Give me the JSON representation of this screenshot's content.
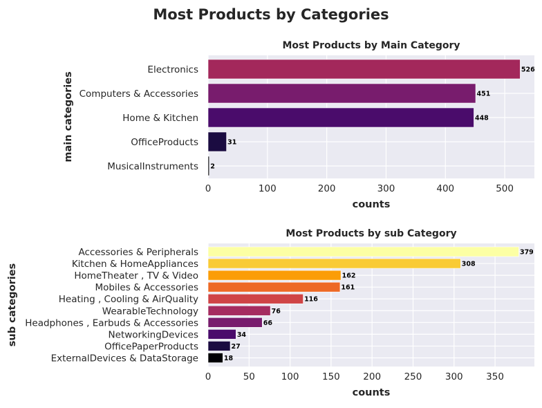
{
  "title": "Most Products by Categories",
  "chart_data": [
    {
      "type": "bar",
      "orientation": "horizontal",
      "title": "Most Products by Main Category",
      "xlabel": "counts",
      "ylabel": "main categories",
      "xlim": [
        0,
        550
      ],
      "xticks": [
        0,
        100,
        200,
        300,
        400,
        500
      ],
      "grid": true,
      "categories": [
        "Electronics",
        "Computers & Accessories",
        "Home & Kitchen",
        "OfficeProducts",
        "MusicalInstruments"
      ],
      "values": [
        526,
        451,
        448,
        31,
        2
      ],
      "colors": [
        "#a3285b",
        "#781c6d",
        "#4a0c6b",
        "#1b0c41",
        "#000004"
      ]
    },
    {
      "type": "bar",
      "orientation": "horizontal",
      "title": "Most Products by sub Category",
      "xlabel": "counts",
      "ylabel": "sub categories",
      "xlim": [
        0,
        398
      ],
      "xticks": [
        0,
        50,
        100,
        150,
        200,
        250,
        300,
        350
      ],
      "grid": true,
      "categories": [
        "Accessories & Peripherals",
        "Kitchen & HomeAppliances",
        "HomeTheater , TV & Video",
        "Mobiles & Accessories",
        "Heating , Cooling & AirQuality",
        "WearableTechnology",
        "Headphones , Earbuds & Accessories",
        "NetworkingDevices",
        "OfficePaperProducts",
        "ExternalDevices & DataStorage"
      ],
      "values": [
        379,
        308,
        162,
        161,
        116,
        76,
        66,
        34,
        27,
        18
      ],
      "colors": [
        "#fcffa4",
        "#f9cb35",
        "#fb9d07",
        "#ed6925",
        "#cf4446",
        "#a52c60",
        "#781c6d",
        "#4a0c6b",
        "#1b0c41",
        "#000004"
      ]
    }
  ]
}
